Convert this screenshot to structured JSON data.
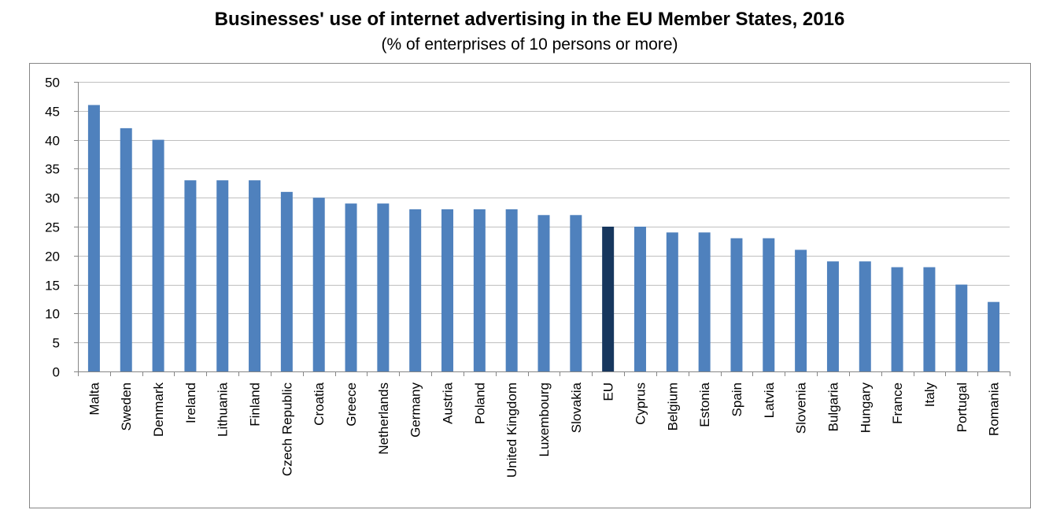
{
  "title": "Businesses' use of internet advertising in the EU Member States, 2016",
  "subtitle": "(% of enterprises of 10 persons or more)",
  "colors": {
    "bar": "#4f81bd",
    "highlight": "#17375e",
    "grid": "#bfbfbf",
    "axis": "#868686",
    "frame": "#868686"
  },
  "chart_data": {
    "type": "bar",
    "title": "Businesses' use of internet advertising in the EU Member States, 2016",
    "subtitle": "(% of enterprises of 10 persons or more)",
    "xlabel": "",
    "ylabel": "",
    "ylim": [
      0,
      50
    ],
    "yticks": [
      0,
      5,
      10,
      15,
      20,
      25,
      30,
      35,
      40,
      45,
      50
    ],
    "grid": true,
    "legend": "none",
    "highlight_category": "EU",
    "categories": [
      "Malta",
      "Sweden",
      "Denmark",
      "Ireland",
      "Lithuania",
      "Finland",
      "Czech Republic",
      "Croatia",
      "Greece",
      "Netherlands",
      "Germany",
      "Austria",
      "Poland",
      "United Kingdom",
      "Luxembourg",
      "Slovakia",
      "EU",
      "Cyprus",
      "Belgium",
      "Estonia",
      "Spain",
      "Latvia",
      "Slovenia",
      "Bulgaria",
      "Hungary",
      "France",
      "Italy",
      "Portugal",
      "Romania"
    ],
    "values": [
      46,
      42,
      40,
      33,
      33,
      33,
      31,
      30,
      29,
      29,
      28,
      28,
      28,
      28,
      27,
      27,
      25,
      25,
      24,
      24,
      23,
      23,
      21,
      19,
      19,
      18,
      18,
      15,
      12
    ]
  }
}
